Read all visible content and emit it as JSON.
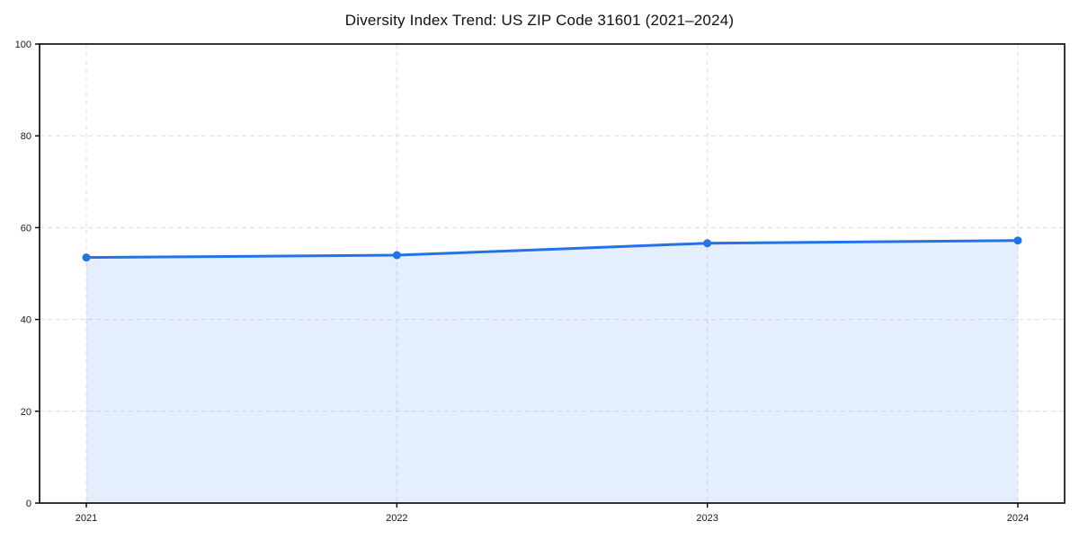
{
  "title": "Diversity Index Trend: US ZIP Code 31601 (2021–2024)",
  "chart_data": {
    "type": "area",
    "title": "Diversity Index Trend: US ZIP Code 31601 (2021–2024)",
    "categories": [
      "2021",
      "2022",
      "2023",
      "2024"
    ],
    "series": [
      {
        "name": "Diversity Index",
        "values": [
          53.5,
          54.0,
          56.6,
          57.2
        ]
      }
    ],
    "xlabel": "",
    "ylabel": "",
    "ylim": [
      0,
      100
    ],
    "yticks": [
      0,
      20,
      40,
      60,
      80,
      100
    ],
    "grid": true,
    "grid_style": "dashed",
    "legend_position": "none",
    "colors": {
      "line": "#2272e8",
      "marker": "#2272e8",
      "area_fill": "rgba(34,114,232,0.12)",
      "grid": "#dedede",
      "spine": "#000000",
      "tick_text": "#1a1a1a",
      "background": "#ffffff"
    }
  }
}
